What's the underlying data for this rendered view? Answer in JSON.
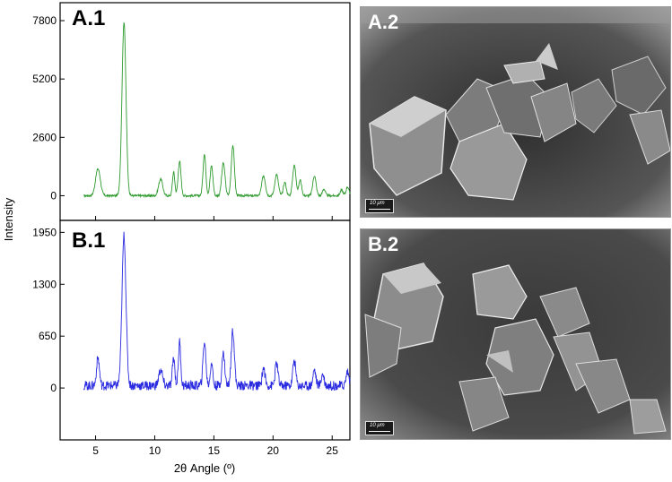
{
  "figure": {
    "ylabel": "Intensity",
    "xlabel": "2θ Angle (º)"
  },
  "chart_data": [
    {
      "type": "line",
      "panel": "A.1",
      "color": "#2e9a2e",
      "xlim": [
        2,
        26.5
      ],
      "ylim": [
        -1100,
        8600
      ],
      "xticks": [
        5,
        10,
        15,
        20,
        25
      ],
      "yticks": [
        0,
        2600,
        5200,
        7800
      ],
      "x_start": 4,
      "base": 0,
      "peaks": [
        {
          "x": 5.2,
          "y": 1200,
          "w": 0.2
        },
        {
          "x": 7.4,
          "y": 7750,
          "w": 0.17
        },
        {
          "x": 10.5,
          "y": 750,
          "w": 0.17
        },
        {
          "x": 11.6,
          "y": 1050,
          "w": 0.1
        },
        {
          "x": 12.1,
          "y": 1550,
          "w": 0.12
        },
        {
          "x": 14.2,
          "y": 1850,
          "w": 0.12
        },
        {
          "x": 14.8,
          "y": 1350,
          "w": 0.12
        },
        {
          "x": 15.8,
          "y": 1450,
          "w": 0.14
        },
        {
          "x": 16.6,
          "y": 2250,
          "w": 0.13
        },
        {
          "x": 19.2,
          "y": 900,
          "w": 0.15
        },
        {
          "x": 20.3,
          "y": 950,
          "w": 0.15
        },
        {
          "x": 21.0,
          "y": 600,
          "w": 0.12
        },
        {
          "x": 21.8,
          "y": 1350,
          "w": 0.14
        },
        {
          "x": 22.3,
          "y": 700,
          "w": 0.12
        },
        {
          "x": 23.5,
          "y": 900,
          "w": 0.14
        },
        {
          "x": 24.3,
          "y": 300,
          "w": 0.12
        },
        {
          "x": 25.8,
          "y": 250,
          "w": 0.12
        },
        {
          "x": 26.3,
          "y": 400,
          "w": 0.12
        }
      ],
      "noise_amp": 50
    },
    {
      "type": "line",
      "panel": "B.1",
      "color": "#2a2ae0",
      "xlim": [
        2,
        26.5
      ],
      "ylim": [
        -650,
        2100
      ],
      "xticks": [
        5,
        10,
        15,
        20,
        25
      ],
      "yticks": [
        0,
        650,
        1300,
        1950
      ],
      "x_start": 4,
      "base": 30,
      "peaks": [
        {
          "x": 5.2,
          "y": 350,
          "w": 0.12
        },
        {
          "x": 7.4,
          "y": 1880,
          "w": 0.17
        },
        {
          "x": 10.5,
          "y": 200,
          "w": 0.15
        },
        {
          "x": 11.6,
          "y": 350,
          "w": 0.1
        },
        {
          "x": 12.1,
          "y": 550,
          "w": 0.1
        },
        {
          "x": 14.2,
          "y": 550,
          "w": 0.12
        },
        {
          "x": 14.8,
          "y": 300,
          "w": 0.1
        },
        {
          "x": 15.8,
          "y": 400,
          "w": 0.12
        },
        {
          "x": 16.6,
          "y": 700,
          "w": 0.13
        },
        {
          "x": 19.2,
          "y": 220,
          "w": 0.12
        },
        {
          "x": 20.3,
          "y": 280,
          "w": 0.12
        },
        {
          "x": 21.8,
          "y": 320,
          "w": 0.12
        },
        {
          "x": 23.5,
          "y": 200,
          "w": 0.12
        },
        {
          "x": 24.2,
          "y": 150,
          "w": 0.12
        },
        {
          "x": 26.3,
          "y": 180,
          "w": 0.12
        }
      ],
      "noise_amp": 60
    }
  ],
  "images": [
    {
      "label": "A.2",
      "scale": "10 μm"
    },
    {
      "label": "B.2",
      "scale": "10 μm"
    }
  ]
}
